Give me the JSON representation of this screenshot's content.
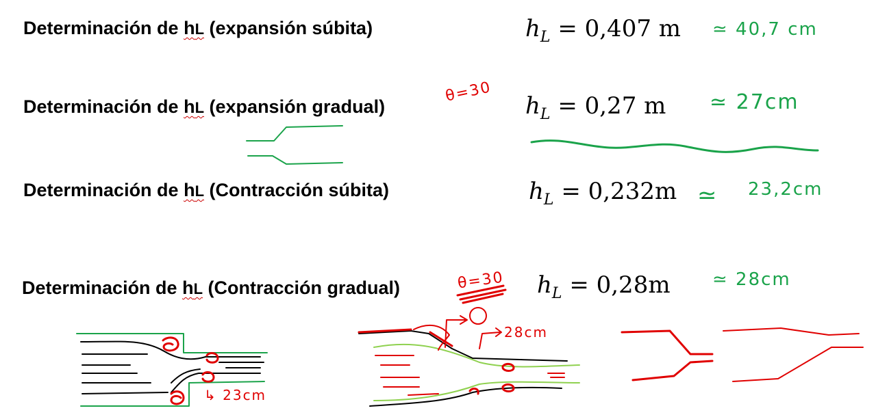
{
  "rows": [
    {
      "prefix": "Determinación de ",
      "symbol": "h",
      "symbol_sub": "L",
      "case": "(expansión súbita)",
      "eq_var": "h",
      "eq_sub": "L",
      "eq_rest": " = 0,407 m",
      "approx": "≃ 40,7 cm"
    },
    {
      "prefix": "Determinación de ",
      "symbol": "h",
      "symbol_sub": "L",
      "case": "(expansión gradual)",
      "note": "θ=30",
      "eq_var": "h",
      "eq_sub": "L",
      "eq_rest": " = 0,27 m",
      "approx": "≃ 27cm"
    },
    {
      "prefix": "Determinación de ",
      "symbol": "h",
      "symbol_sub": "L",
      "case": "(Contracción súbita)",
      "eq_var": "h",
      "eq_sub": "L",
      "eq_rest": " = 0,232m",
      "approx_symbol": "≃",
      "approx": "23,2cm"
    },
    {
      "prefix": "Determinación de ",
      "symbol": "h",
      "symbol_sub": "L",
      "case": "(Contracción gradual)",
      "note": "θ=30",
      "eq_var": "h",
      "eq_sub": "L",
      "eq_rest": " = 0,28m",
      "approx": "≃ 28cm"
    }
  ],
  "sketches": {
    "sudden_contraction_label": "↳ 23cm",
    "gradual_contraction_label": "28cm"
  },
  "colors": {
    "ink": "#000000",
    "green_ink": "#1aa34a",
    "red_ink": "#e00000",
    "light_green_ink": "#8fd14f"
  }
}
